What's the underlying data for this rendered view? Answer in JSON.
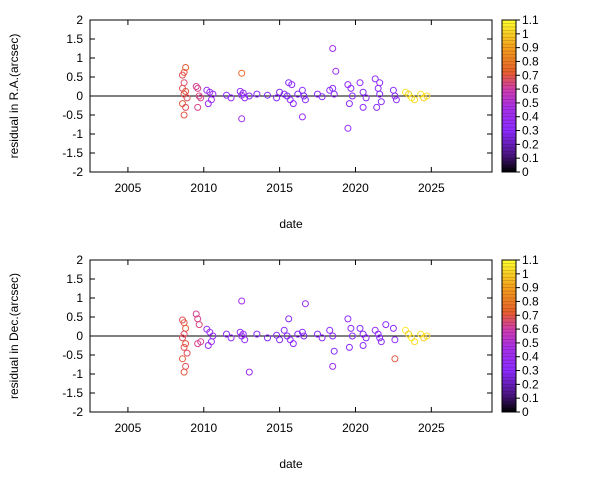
{
  "chart_data": [
    {
      "type": "scatter",
      "ylabel": "residual in R.A.(arcsec)",
      "xlabel": "date",
      "xlim": [
        2002.5,
        2029
      ],
      "ylim": [
        -2,
        2
      ],
      "xticks": [
        "2005",
        "2010",
        "2015",
        "2020",
        "2025"
      ],
      "yticks": [
        "2",
        "1.5",
        "1",
        "0.5",
        "0",
        "-0.5",
        "-1",
        "-1.5",
        "-2"
      ],
      "colorbar": {
        "range": [
          0,
          1.1
        ],
        "ticks": [
          "1.1",
          "1",
          "0.9",
          "0.8",
          "0.7",
          "0.6",
          "0.5",
          "0.4",
          "0.3",
          "0.2",
          "0.1",
          "0"
        ]
      },
      "grid": false,
      "legend": "none",
      "marker": "open circle",
      "annotation": "",
      "series": [
        {
          "x": [
            2008.6,
            2008.7,
            2008.8,
            2008.7,
            2008.6,
            2008.8,
            2008.7,
            2008.9,
            2008.6,
            2008.8,
            2008.7,
            2009.5,
            2009.6,
            2009.7,
            2009.8,
            2009.6,
            2012.5
          ],
          "y": [
            0.55,
            0.62,
            0.75,
            0.35,
            0.2,
            0.12,
            0.05,
            -0.05,
            -0.2,
            -0.3,
            -0.5,
            0.25,
            0.2,
            0.0,
            -0.05,
            -0.3,
            0.6
          ],
          "c": [
            0.68,
            0.7,
            0.72,
            0.66,
            0.68,
            0.7,
            0.69,
            0.67,
            0.71,
            0.68,
            0.7,
            0.62,
            0.63,
            0.64,
            0.62,
            0.63,
            0.75
          ]
        },
        {
          "x": [
            2010.2,
            2010.4,
            2010.6,
            2010.5,
            2010.3,
            2011.5,
            2011.8,
            2012.4,
            2012.6,
            2012.5,
            2012.7,
            2012.5,
            2013.0,
            2013.5,
            2014.2,
            2014.8,
            2015.0,
            2015.3,
            2015.5,
            2015.7,
            2015.9,
            2015.6,
            2015.8,
            2016.2,
            2016.5,
            2016.6,
            2016.7,
            2016.5,
            2017.5,
            2017.8,
            2018.3,
            2018.5,
            2018.6,
            2018.5,
            2018.7,
            2019.5,
            2019.7,
            2019.8,
            2019.6,
            2019.5,
            2020.3,
            2020.5,
            2020.7,
            2020.5,
            2021.3,
            2021.5,
            2021.6,
            2021.7,
            2021.4,
            2021.6,
            2022.5,
            2022.6,
            2022.7
          ],
          "y": [
            0.15,
            0.1,
            0.05,
            -0.1,
            -0.2,
            0.02,
            -0.05,
            0.12,
            0.08,
            0.02,
            -0.05,
            -0.6,
            0.0,
            0.05,
            0.02,
            -0.05,
            0.1,
            0.05,
            0.0,
            -0.1,
            -0.2,
            0.35,
            0.3,
            0.05,
            0.15,
            0.0,
            -0.1,
            -0.55,
            0.05,
            -0.02,
            0.15,
            0.2,
            0.05,
            1.25,
            0.65,
            0.3,
            0.2,
            0.0,
            -0.2,
            -0.85,
            0.35,
            0.1,
            -0.05,
            -0.3,
            0.45,
            0.2,
            0.05,
            -0.15,
            -0.3,
            0.35,
            0.15,
            0.0,
            -0.1
          ],
          "c": [
            0.36,
            0.38,
            0.35,
            0.37,
            0.39,
            0.32,
            0.33,
            0.34,
            0.36,
            0.35,
            0.33,
            0.42,
            0.3,
            0.31,
            0.28,
            0.3,
            0.27,
            0.29,
            0.28,
            0.3,
            0.31,
            0.29,
            0.32,
            0.27,
            0.3,
            0.28,
            0.31,
            0.37,
            0.3,
            0.29,
            0.3,
            0.31,
            0.29,
            0.44,
            0.4,
            0.32,
            0.3,
            0.31,
            0.29,
            0.36,
            0.3,
            0.28,
            0.31,
            0.3,
            0.35,
            0.3,
            0.29,
            0.28,
            0.31,
            0.33,
            0.3,
            0.29,
            0.31
          ]
        },
        {
          "x": [
            2023.3,
            2023.5,
            2023.7,
            2023.9,
            2024.3,
            2024.5,
            2024.7
          ],
          "y": [
            0.1,
            0.05,
            -0.05,
            -0.1,
            0.05,
            -0.05,
            0.0
          ],
          "c": [
            1.05,
            1.0,
            1.06,
            1.02,
            1.05,
            1.0,
            1.03
          ]
        }
      ]
    },
    {
      "type": "scatter",
      "ylabel": "residual in Dec.(arcsec)",
      "xlabel": "date",
      "xlim": [
        2002.5,
        2029
      ],
      "ylim": [
        -2,
        2
      ],
      "xticks": [
        "2005",
        "2010",
        "2015",
        "2020",
        "2025"
      ],
      "yticks": [
        "2",
        "1.5",
        "1",
        "0.5",
        "0",
        "-0.5",
        "-1",
        "-1.5",
        "-2"
      ],
      "colorbar": {
        "range": [
          0,
          1.1
        ],
        "ticks": [
          "1.1",
          "1",
          "0.9",
          "0.8",
          "0.7",
          "0.6",
          "0.5",
          "0.4",
          "0.3",
          "0.2",
          "0.1",
          "0"
        ]
      },
      "grid": false,
      "legend": "none",
      "marker": "open circle",
      "annotation": "",
      "series": [
        {
          "x": [
            2008.6,
            2008.7,
            2008.8,
            2008.7,
            2008.6,
            2008.8,
            2008.7,
            2008.9,
            2008.6,
            2008.8,
            2008.7,
            2009.5,
            2009.6,
            2009.7,
            2009.8,
            2009.6
          ],
          "y": [
            0.42,
            0.35,
            0.2,
            0.05,
            -0.05,
            -0.2,
            -0.3,
            -0.45,
            -0.6,
            -0.8,
            -0.95,
            0.58,
            0.45,
            0.3,
            -0.15,
            -0.2
          ],
          "c": [
            0.68,
            0.7,
            0.72,
            0.66,
            0.68,
            0.7,
            0.69,
            0.67,
            0.71,
            0.68,
            0.7,
            0.62,
            0.63,
            0.64,
            0.62,
            0.63
          ]
        },
        {
          "x": [
            2010.2,
            2010.4,
            2010.6,
            2010.5,
            2010.3,
            2011.5,
            2011.8,
            2012.4,
            2012.6,
            2012.5,
            2012.7,
            2012.5,
            2013.0,
            2013.5,
            2014.2,
            2014.8,
            2015.0,
            2015.3,
            2015.5,
            2015.7,
            2015.9,
            2015.6,
            2016.2,
            2016.5,
            2016.6,
            2016.7,
            2017.5,
            2017.8,
            2018.3,
            2018.5,
            2018.6,
            2018.5,
            2019.5,
            2019.7,
            2019.8,
            2019.6,
            2020.3,
            2020.5,
            2020.7,
            2020.5,
            2021.3,
            2021.5,
            2021.6,
            2021.7,
            2022.0,
            2022.5,
            2022.6
          ],
          "y": [
            0.18,
            0.1,
            0.0,
            -0.15,
            -0.25,
            0.05,
            -0.05,
            0.1,
            0.05,
            0.0,
            -0.1,
            0.92,
            -0.95,
            0.05,
            -0.05,
            0.02,
            -0.1,
            0.15,
            0.0,
            -0.1,
            -0.2,
            0.45,
            0.05,
            0.1,
            0.0,
            0.85,
            0.05,
            -0.05,
            0.15,
            0.0,
            -0.4,
            -0.8,
            0.45,
            0.2,
            0.0,
            -0.3,
            0.2,
            0.05,
            -0.05,
            -0.25,
            0.15,
            0.05,
            -0.05,
            -0.15,
            0.3,
            0.2,
            -0.1
          ],
          "c": [
            0.36,
            0.38,
            0.35,
            0.37,
            0.39,
            0.32,
            0.33,
            0.34,
            0.36,
            0.35,
            0.33,
            0.42,
            0.4,
            0.31,
            0.28,
            0.3,
            0.27,
            0.29,
            0.28,
            0.3,
            0.31,
            0.29,
            0.27,
            0.3,
            0.28,
            0.38,
            0.3,
            0.29,
            0.3,
            0.31,
            0.29,
            0.4,
            0.32,
            0.3,
            0.31,
            0.29,
            0.3,
            0.28,
            0.31,
            0.3,
            0.35,
            0.3,
            0.29,
            0.28,
            0.31,
            0.3,
            0.3
          ]
        },
        {
          "x": [
            2022.6,
            2023.3,
            2023.5,
            2023.7,
            2023.9,
            2024.3,
            2024.5,
            2024.7
          ],
          "y": [
            -0.6,
            0.15,
            0.05,
            -0.05,
            -0.15,
            0.05,
            -0.05,
            0.0
          ],
          "c": [
            0.7,
            1.05,
            1.0,
            1.06,
            1.02,
            1.05,
            1.0,
            1.03
          ]
        }
      ]
    }
  ]
}
